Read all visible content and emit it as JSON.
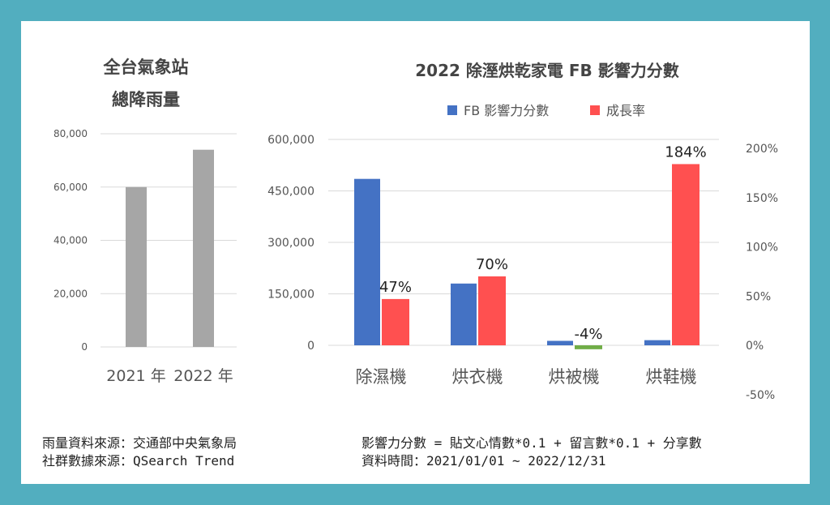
{
  "chart_data": [
    {
      "type": "bar",
      "title_lines": [
        "全台氣象站",
        "總降雨量"
      ],
      "categories": [
        "2021 年",
        "2022 年"
      ],
      "values": [
        60000,
        74000
      ],
      "ylim": [
        0,
        80000
      ],
      "yticks": [
        "0",
        "20,000",
        "40,000",
        "60,000",
        "80,000"
      ],
      "tick_values": [
        0,
        20000,
        40000,
        60000,
        80000
      ],
      "colors": {
        "bar": "#a6a6a6"
      },
      "grid": true
    },
    {
      "type": "bar",
      "title": "2022 除溼烘乾家電 FB 影響力分數",
      "categories": [
        "除濕機",
        "烘衣機",
        "烘被機",
        "烘鞋機"
      ],
      "legend": [
        {
          "name": "FB 影響力分數",
          "color": "#4472c4"
        },
        {
          "name": "成長率",
          "color": "#ff5050"
        }
      ],
      "legend_position": "top",
      "series": [
        {
          "name": "FB 影響力分數",
          "axis": "left",
          "values": [
            485000,
            180000,
            13000,
            15000
          ]
        },
        {
          "name": "成長率",
          "axis": "right",
          "values": [
            47,
            70,
            -4,
            184
          ],
          "labels": [
            "47%",
            "70%",
            "-4%",
            "184%"
          ]
        }
      ],
      "ylim_left": [
        0,
        600000
      ],
      "yticks_left": [
        "0",
        "150,000",
        "300,000",
        "450,000",
        "600,000"
      ],
      "tick_values_left": [
        0,
        150000,
        300000,
        450000,
        600000
      ],
      "ylim_right": [
        -50,
        200
      ],
      "yticks_right": [
        "-50%",
        "0%",
        "50%",
        "100%",
        "150%",
        "200%"
      ],
      "tick_values_right": [
        -50,
        0,
        50,
        100,
        150,
        200
      ],
      "colors": {
        "primary": "#4472c4",
        "growth": "#ff5050",
        "negative": "#70ad47"
      },
      "grid": true
    }
  ],
  "footer": {
    "left_line1": "雨量資料來源：交通部中央氣象局",
    "left_line2": "社群數據來源：QSearch Trend",
    "right_line1": "影響力分數 = 貼文心情數*0.1 + 留言數*0.1 + 分享數",
    "right_line2": "資料時間：2021/01/01 ~ 2022/12/31"
  }
}
